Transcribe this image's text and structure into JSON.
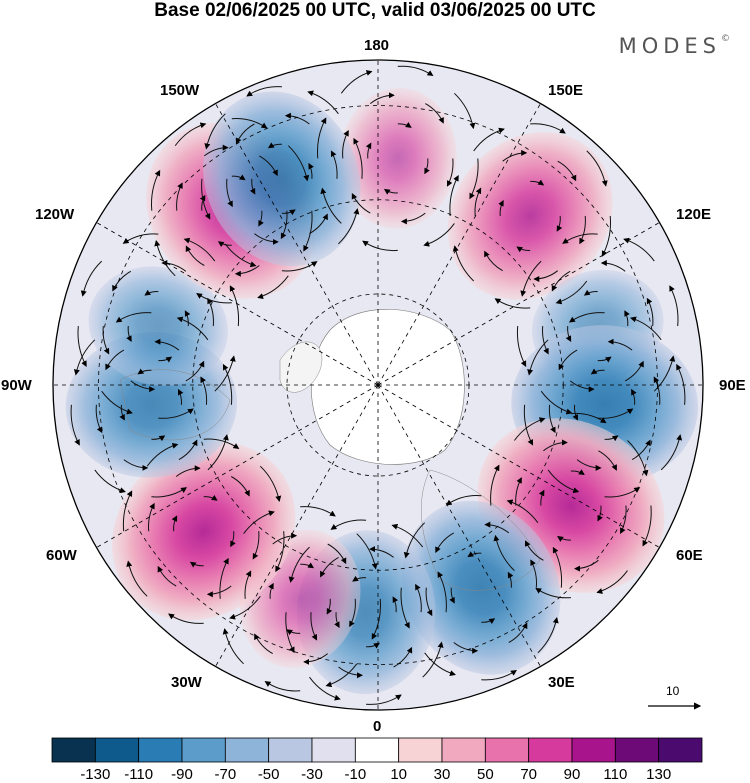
{
  "title": "Base 02/06/2025 00 UTC, valid 03/06/2025 00 UTC",
  "brand": {
    "text": "MODES",
    "mark": "©"
  },
  "longitude_labels": {
    "top": "180",
    "top_right": "150E",
    "right_upper": "120E",
    "right": "90E",
    "right_lower": "60E",
    "bottom_right": "30E",
    "bottom": "0",
    "bottom_left": "30W",
    "left_lower": "60W",
    "left": "90W",
    "left_upper": "120W",
    "top_left": "150W"
  },
  "reference_vector": {
    "value": "10",
    "icon": "arrow-right-icon"
  },
  "colorbar": {
    "labels": [
      "-130",
      "-110",
      "-90",
      "-70",
      "-50",
      "-30",
      "-10",
      "10",
      "30",
      "50",
      "70",
      "90",
      "110",
      "130"
    ],
    "colors": [
      "#08324f",
      "#0f5a8c",
      "#2a7cb5",
      "#5b9ccb",
      "#8fb4da",
      "#b9c7e2",
      "#e0e0ee",
      "#ffffff",
      "#f7d3d6",
      "#f0a9bf",
      "#e873ac",
      "#d63a9c",
      "#a8148b",
      "#6e0a78",
      "#4a0a6e"
    ]
  },
  "map": {
    "projection": "north-polar-stereographic",
    "colors": {
      "positive": "#e0489e",
      "negative": "#2f7bb7",
      "land": "#f0f0f0",
      "grid": "#000000"
    },
    "anomaly_centers": [
      {
        "lon": 175,
        "value": 40
      },
      {
        "lon": 138,
        "value": 90
      },
      {
        "lon": 105,
        "value": -30
      },
      {
        "lon": 85,
        "value": -100
      },
      {
        "lon": 58,
        "value": 110
      },
      {
        "lon": 27,
        "value": -90
      },
      {
        "lon": -3,
        "value": -70
      },
      {
        "lon": -20,
        "value": 40
      },
      {
        "lon": -50,
        "value": 110
      },
      {
        "lon": -85,
        "value": -80
      },
      {
        "lon": -105,
        "value": -40
      },
      {
        "lon": -140,
        "value": 100
      },
      {
        "lon": -155,
        "value": -90
      }
    ]
  }
}
